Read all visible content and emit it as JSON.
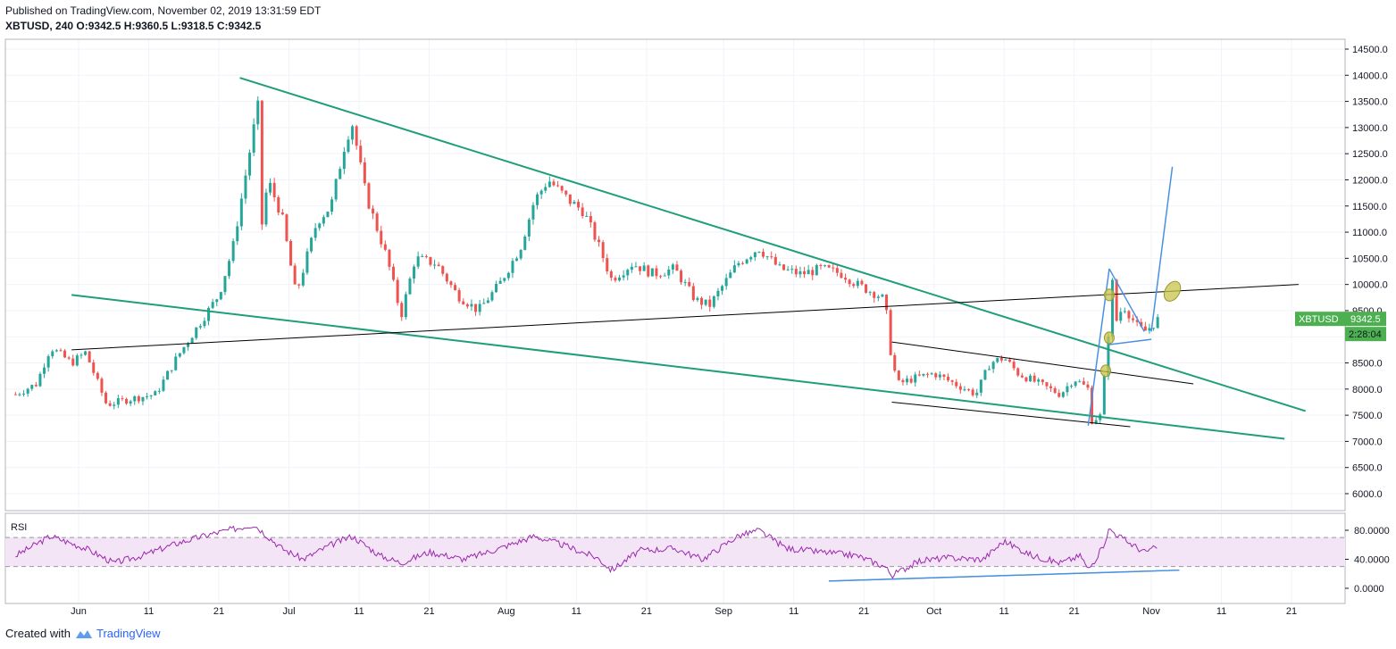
{
  "header": {
    "published": "Published on TradingView.com, November 02, 2019 13:31:59 EDT",
    "symbol": "XBTUSD",
    "interval": "240",
    "o_label": "O:",
    "o_value": "9342.5",
    "h_label": "H:",
    "h_value": "9360.5",
    "l_label": "L:",
    "l_value": "9318.5",
    "c_label": "C:",
    "c_value": "9342.5"
  },
  "footer": {
    "created_with": "Created with",
    "brand": "TradingView"
  },
  "colors": {
    "up": "#26a69a",
    "down": "#ef5350",
    "trend_green": "#1f9e7a",
    "trend_black": "#000000",
    "trend_blue": "#4a90e2",
    "rsi_line": "#9c27b0",
    "rsi_band": "#f3e5f5",
    "marker": "#c8c34a",
    "badge": "#4caf50"
  },
  "chart_data": {
    "type": "candlestick",
    "symbol": "XBTUSD",
    "timeframe": "240",
    "x_tick_labels": [
      "Jun",
      "11",
      "21",
      "Jul",
      "11",
      "21",
      "Aug",
      "11",
      "21",
      "Sep",
      "11",
      "21",
      "Oct",
      "11",
      "21",
      "Nov",
      "11",
      "21"
    ],
    "x_tick_dates": [
      "2019-06-01",
      "2019-06-11",
      "2019-06-21",
      "2019-07-01",
      "2019-07-11",
      "2019-07-21",
      "2019-08-01",
      "2019-08-11",
      "2019-08-21",
      "2019-09-01",
      "2019-09-11",
      "2019-09-21",
      "2019-10-01",
      "2019-10-11",
      "2019-10-21",
      "2019-11-01",
      "2019-11-11",
      "2019-11-21"
    ],
    "y_tick_labels": [
      "14500.0",
      "14000.0",
      "13500.0",
      "13000.0",
      "12500.0",
      "12000.0",
      "11500.0",
      "11000.0",
      "10500.0",
      "10000.0",
      "9500.0",
      "9000.0",
      "8500.0",
      "8000.0",
      "7500.0",
      "7000.0",
      "6500.0",
      "6000.0"
    ],
    "ylim": [
      5700,
      14700
    ],
    "price_path": [
      [
        "2019-05-23",
        7900
      ],
      [
        "2019-05-26",
        8100
      ],
      [
        "2019-05-28",
        8800
      ],
      [
        "2019-05-31",
        8500
      ],
      [
        "2019-06-02",
        8700
      ],
      [
        "2019-06-05",
        7700
      ],
      [
        "2019-06-08",
        7800
      ],
      [
        "2019-06-12",
        7900
      ],
      [
        "2019-06-15",
        8600
      ],
      [
        "2019-06-18",
        9200
      ],
      [
        "2019-06-21",
        9800
      ],
      [
        "2019-06-23",
        10700
      ],
      [
        "2019-06-26",
        13000
      ],
      [
        "2019-06-26T12",
        13800
      ],
      [
        "2019-06-27",
        11000
      ],
      [
        "2019-06-28",
        12000
      ],
      [
        "2019-06-30",
        11300
      ],
      [
        "2019-07-02",
        9800
      ],
      [
        "2019-07-05",
        11200
      ],
      [
        "2019-07-07",
        11500
      ],
      [
        "2019-07-09",
        12700
      ],
      [
        "2019-07-10",
        13100
      ],
      [
        "2019-07-12",
        11700
      ],
      [
        "2019-07-15",
        10500
      ],
      [
        "2019-07-17",
        9400
      ],
      [
        "2019-07-19",
        10500
      ],
      [
        "2019-07-22",
        10400
      ],
      [
        "2019-07-25",
        9800
      ],
      [
        "2019-07-28",
        9500
      ],
      [
        "2019-07-31",
        10000
      ],
      [
        "2019-08-03",
        10700
      ],
      [
        "2019-08-05",
        11600
      ],
      [
        "2019-08-07",
        12000
      ],
      [
        "2019-08-10",
        11600
      ],
      [
        "2019-08-12",
        11400
      ],
      [
        "2019-08-14",
        10800
      ],
      [
        "2019-08-16",
        10100
      ],
      [
        "2019-08-19",
        10400
      ],
      [
        "2019-08-22",
        10200
      ],
      [
        "2019-08-25",
        10300
      ],
      [
        "2019-08-28",
        9700
      ],
      [
        "2019-08-30",
        9600
      ],
      [
        "2019-09-03",
        10400
      ],
      [
        "2019-09-06",
        10700
      ],
      [
        "2019-09-09",
        10300
      ],
      [
        "2019-09-12",
        10200
      ],
      [
        "2019-09-15",
        10300
      ],
      [
        "2019-09-18",
        10200
      ],
      [
        "2019-09-20",
        10000
      ],
      [
        "2019-09-23",
        9800
      ],
      [
        "2019-09-24",
        9700
      ],
      [
        "2019-09-25",
        8500
      ],
      [
        "2019-09-26",
        8100
      ],
      [
        "2019-09-28",
        8200
      ],
      [
        "2019-10-01",
        8300
      ],
      [
        "2019-10-04",
        8100
      ],
      [
        "2019-10-07",
        7900
      ],
      [
        "2019-10-09",
        8500
      ],
      [
        "2019-10-11",
        8600
      ],
      [
        "2019-10-13",
        8300
      ],
      [
        "2019-10-16",
        8100
      ],
      [
        "2019-10-19",
        7900
      ],
      [
        "2019-10-21",
        8200
      ],
      [
        "2019-10-23",
        8000
      ],
      [
        "2019-10-23T12",
        7400
      ],
      [
        "2019-10-25",
        7500
      ],
      [
        "2019-10-25T12",
        8700
      ],
      [
        "2019-10-26",
        9200
      ],
      [
        "2019-10-26T12",
        10100
      ],
      [
        "2019-10-27",
        9300
      ],
      [
        "2019-10-28",
        9600
      ],
      [
        "2019-10-29",
        9400
      ],
      [
        "2019-10-30",
        9200
      ],
      [
        "2019-10-31",
        9100
      ],
      [
        "2019-11-01",
        9200
      ],
      [
        "2019-11-02",
        9342.5
      ]
    ],
    "rsi": {
      "label": "RSI",
      "axis_labels": [
        "80.0000",
        "40.0000",
        "0.0000"
      ],
      "upper_band": 70,
      "lower_band": 30,
      "path": [
        [
          "2019-05-23",
          45
        ],
        [
          "2019-05-28",
          72
        ],
        [
          "2019-06-02",
          55
        ],
        [
          "2019-06-06",
          35
        ],
        [
          "2019-06-10",
          45
        ],
        [
          "2019-06-15",
          62
        ],
        [
          "2019-06-20",
          75
        ],
        [
          "2019-06-26",
          88
        ],
        [
          "2019-06-30",
          55
        ],
        [
          "2019-07-03",
          40
        ],
        [
          "2019-07-07",
          60
        ],
        [
          "2019-07-10",
          72
        ],
        [
          "2019-07-14",
          45
        ],
        [
          "2019-07-17",
          35
        ],
        [
          "2019-07-21",
          50
        ],
        [
          "2019-07-26",
          40
        ],
        [
          "2019-07-31",
          55
        ],
        [
          "2019-08-05",
          72
        ],
        [
          "2019-08-09",
          60
        ],
        [
          "2019-08-14",
          42
        ],
        [
          "2019-08-16",
          25
        ],
        [
          "2019-08-20",
          52
        ],
        [
          "2019-08-25",
          55
        ],
        [
          "2019-08-29",
          40
        ],
        [
          "2019-09-03",
          72
        ],
        [
          "2019-09-06",
          80
        ],
        [
          "2019-09-10",
          55
        ],
        [
          "2019-09-15",
          50
        ],
        [
          "2019-09-20",
          45
        ],
        [
          "2019-09-24",
          30
        ],
        [
          "2019-09-25",
          18
        ],
        [
          "2019-09-29",
          38
        ],
        [
          "2019-10-03",
          42
        ],
        [
          "2019-10-08",
          40
        ],
        [
          "2019-10-11",
          65
        ],
        [
          "2019-10-15",
          45
        ],
        [
          "2019-10-19",
          35
        ],
        [
          "2019-10-22",
          45
        ],
        [
          "2019-10-23",
          25
        ],
        [
          "2019-10-25",
          55
        ],
        [
          "2019-10-26",
          82
        ],
        [
          "2019-10-28",
          68
        ],
        [
          "2019-10-31",
          50
        ],
        [
          "2019-11-02",
          57
        ]
      ]
    },
    "drawings": [
      {
        "kind": "trendline",
        "color": "green",
        "from": [
          "2019-06-24",
          13950
        ],
        "to": [
          "2019-11-23",
          7580
        ]
      },
      {
        "kind": "trendline",
        "color": "green",
        "from": [
          "2019-05-31",
          9800
        ],
        "to": [
          "2019-11-20",
          7050
        ]
      },
      {
        "kind": "trendline",
        "color": "black",
        "from": [
          "2019-05-31",
          8750
        ],
        "to": [
          "2019-11-22",
          10000
        ]
      },
      {
        "kind": "trendline",
        "color": "black",
        "from": [
          "2019-09-25",
          8900
        ],
        "to": [
          "2019-11-07",
          8100
        ]
      },
      {
        "kind": "trendline",
        "color": "black",
        "from": [
          "2019-09-25",
          7750
        ],
        "to": [
          "2019-10-29",
          7280
        ]
      },
      {
        "kind": "trendline",
        "color": "blue",
        "from": [
          "2019-10-23",
          7300
        ],
        "to": [
          "2019-10-26",
          10300
        ]
      },
      {
        "kind": "trendline",
        "color": "blue",
        "from": [
          "2019-10-26",
          10300
        ],
        "to": [
          "2019-10-31",
          9100
        ]
      },
      {
        "kind": "trendline",
        "color": "blue",
        "from": [
          "2019-10-26",
          8850
        ],
        "to": [
          "2019-11-01",
          8950
        ]
      },
      {
        "kind": "trendline",
        "color": "blue",
        "from": [
          "2019-11-01",
          9100
        ],
        "to": [
          "2019-11-04",
          12250
        ]
      },
      {
        "kind": "trendline",
        "color": "blue",
        "pane": "rsi",
        "from": [
          "2019-09-16",
          10
        ],
        "to": [
          "2019-11-05",
          25
        ]
      }
    ],
    "markers": [
      {
        "date": "2019-10-26",
        "price": 9800,
        "size": "small"
      },
      {
        "date": "2019-10-26",
        "price": 8980,
        "size": "small"
      },
      {
        "date": "2019-10-25T12",
        "price": 8350,
        "size": "small"
      },
      {
        "date": "2019-11-04",
        "price": 9870,
        "size": "large"
      }
    ],
    "price_label": {
      "symbol": "XBTUSD",
      "value": "9342.5",
      "countdown": "2:28:04"
    }
  }
}
